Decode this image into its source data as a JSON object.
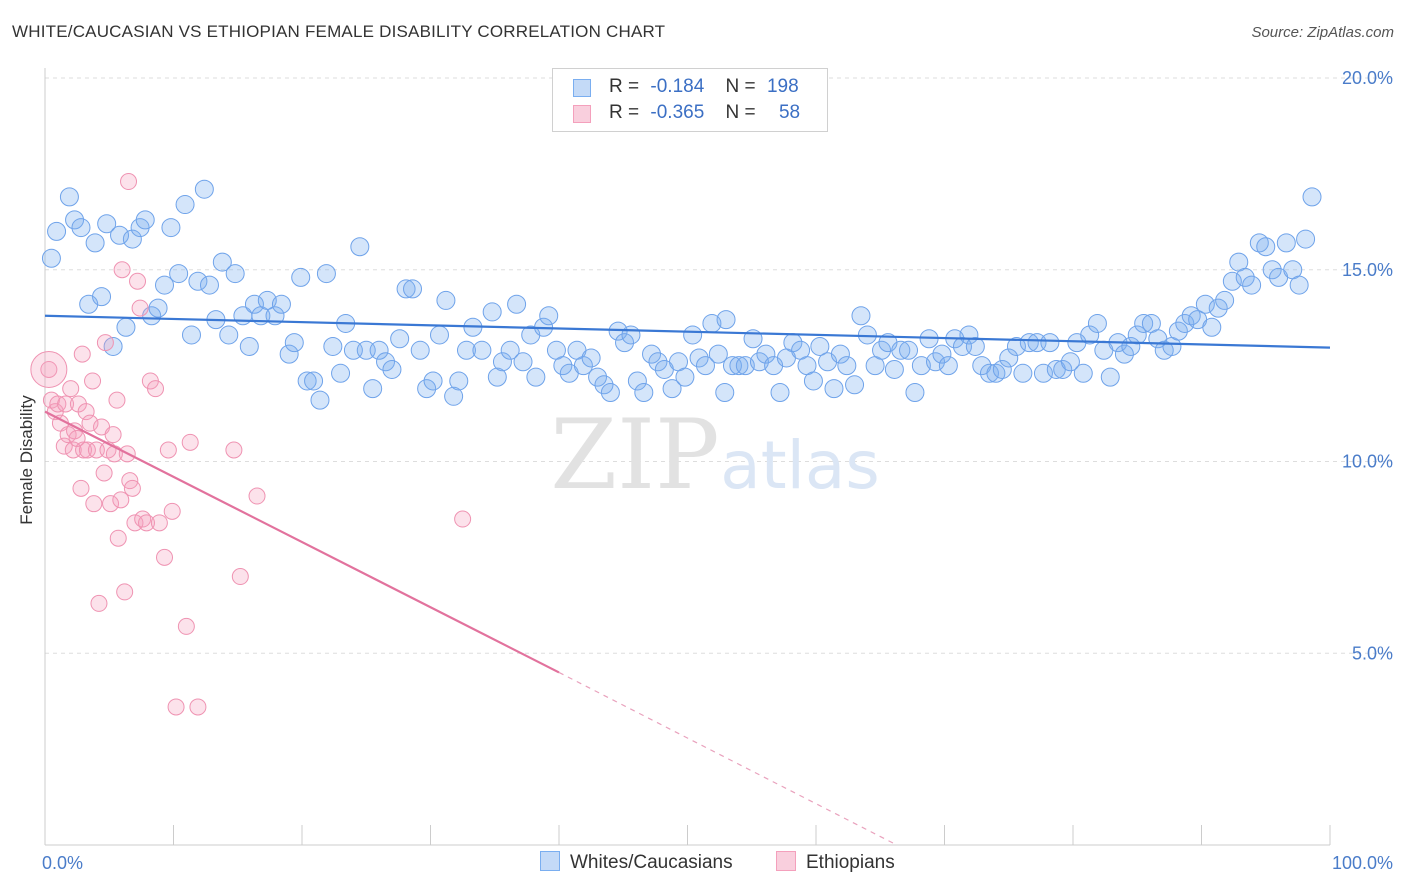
{
  "title": "WHITE/CAUCASIAN VS ETHIOPIAN FEMALE DISABILITY CORRELATION CHART",
  "source": "Source: ZipAtlas.com",
  "watermark": {
    "zip": "ZIP",
    "atlas": "atlas"
  },
  "legend": {
    "rows": [
      {
        "r_label": "R =",
        "r_value": "-0.184",
        "n_label": "N =",
        "n_value": "198",
        "color": "#7aaef0"
      },
      {
        "r_label": "R =",
        "r_value": "-0.365",
        "n_label": "N =",
        "n_value": "58",
        "color": "#f4a0bc"
      }
    ]
  },
  "bottom_legend": [
    {
      "label": "Whites/Caucasians",
      "color": "#7aaef0"
    },
    {
      "label": "Ethiopians",
      "color": "#f4a0bc"
    }
  ],
  "chart_data": {
    "type": "scatter",
    "title": "WHITE/CAUCASIAN VS ETHIOPIAN FEMALE DISABILITY CORRELATION CHART",
    "xlabel": "",
    "ylabel": "Female Disability",
    "xlim": [
      0,
      100
    ],
    "ylim": [
      0,
      20
    ],
    "x_tick_labels": [
      "0.0%",
      "100.0%"
    ],
    "y_ticks": [
      5,
      10,
      15,
      20
    ],
    "y_tick_labels": [
      "5.0%",
      "10.0%",
      "15.0%",
      "20.0%"
    ],
    "grid": true,
    "series": [
      {
        "name": "Whites/Caucasians",
        "color": "#7aaef0",
        "trend": {
          "x": [
            0,
            100
          ],
          "y": [
            13.8,
            12.97
          ]
        },
        "points": [
          [
            0.5,
            15.3
          ],
          [
            0.9,
            16.0
          ],
          [
            1.9,
            16.9
          ],
          [
            2.3,
            16.3
          ],
          [
            2.8,
            16.1
          ],
          [
            3.4,
            14.1
          ],
          [
            3.9,
            15.7
          ],
          [
            4.4,
            14.3
          ],
          [
            4.8,
            16.2
          ],
          [
            5.3,
            13.0
          ],
          [
            5.8,
            15.9
          ],
          [
            6.3,
            13.5
          ],
          [
            6.8,
            15.8
          ],
          [
            7.4,
            16.1
          ],
          [
            7.8,
            16.3
          ],
          [
            8.3,
            13.8
          ],
          [
            8.8,
            14.0
          ],
          [
            9.3,
            14.6
          ],
          [
            9.8,
            16.1
          ],
          [
            10.4,
            14.9
          ],
          [
            10.9,
            16.7
          ],
          [
            11.4,
            13.3
          ],
          [
            11.9,
            14.7
          ],
          [
            12.4,
            17.1
          ],
          [
            12.8,
            14.6
          ],
          [
            13.3,
            13.7
          ],
          [
            13.8,
            15.2
          ],
          [
            14.3,
            13.3
          ],
          [
            14.8,
            14.9
          ],
          [
            15.4,
            13.8
          ],
          [
            15.9,
            13.0
          ],
          [
            16.3,
            14.1
          ],
          [
            16.8,
            13.8
          ],
          [
            17.3,
            14.2
          ],
          [
            17.9,
            13.8
          ],
          [
            18.4,
            14.1
          ],
          [
            19.0,
            12.8
          ],
          [
            19.4,
            13.1
          ],
          [
            19.9,
            14.8
          ],
          [
            20.4,
            12.1
          ],
          [
            20.9,
            12.1
          ],
          [
            21.4,
            11.6
          ],
          [
            21.9,
            14.9
          ],
          [
            22.4,
            13.0
          ],
          [
            23.0,
            12.3
          ],
          [
            23.4,
            13.6
          ],
          [
            24.0,
            12.9
          ],
          [
            24.5,
            15.6
          ],
          [
            25.0,
            12.9
          ],
          [
            25.5,
            11.9
          ],
          [
            26.0,
            12.9
          ],
          [
            26.5,
            12.6
          ],
          [
            27.0,
            12.4
          ],
          [
            27.6,
            13.2
          ],
          [
            28.1,
            14.5
          ],
          [
            28.6,
            14.5
          ],
          [
            29.2,
            12.9
          ],
          [
            29.7,
            11.9
          ],
          [
            30.2,
            12.1
          ],
          [
            30.7,
            13.3
          ],
          [
            31.2,
            14.2
          ],
          [
            31.8,
            11.7
          ],
          [
            32.2,
            12.1
          ],
          [
            32.8,
            12.9
          ],
          [
            33.3,
            13.5
          ],
          [
            34.0,
            12.9
          ],
          [
            34.8,
            13.9
          ],
          [
            35.2,
            12.2
          ],
          [
            35.6,
            12.6
          ],
          [
            36.2,
            12.9
          ],
          [
            36.7,
            14.1
          ],
          [
            37.2,
            12.6
          ],
          [
            37.8,
            13.3
          ],
          [
            38.2,
            12.2
          ],
          [
            38.8,
            13.5
          ],
          [
            39.2,
            13.8
          ],
          [
            39.8,
            12.9
          ],
          [
            40.3,
            12.5
          ],
          [
            40.8,
            12.3
          ],
          [
            41.4,
            12.9
          ],
          [
            41.9,
            12.5
          ],
          [
            42.5,
            12.7
          ],
          [
            43.0,
            12.2
          ],
          [
            43.5,
            12.0
          ],
          [
            44.0,
            11.8
          ],
          [
            44.6,
            13.4
          ],
          [
            45.1,
            13.1
          ],
          [
            45.6,
            13.3
          ],
          [
            46.1,
            12.1
          ],
          [
            46.6,
            11.8
          ],
          [
            47.2,
            12.8
          ],
          [
            47.7,
            12.6
          ],
          [
            48.2,
            12.4
          ],
          [
            48.8,
            11.9
          ],
          [
            49.3,
            12.6
          ],
          [
            49.8,
            12.2
          ],
          [
            50.4,
            13.3
          ],
          [
            50.9,
            12.7
          ],
          [
            51.4,
            12.5
          ],
          [
            51.9,
            13.6
          ],
          [
            52.4,
            12.8
          ],
          [
            52.9,
            11.8
          ],
          [
            53.5,
            12.5
          ],
          [
            54.0,
            12.5
          ],
          [
            54.5,
            12.5
          ],
          [
            55.1,
            13.2
          ],
          [
            55.6,
            12.6
          ],
          [
            56.1,
            12.8
          ],
          [
            56.7,
            12.5
          ],
          [
            57.2,
            11.8
          ],
          [
            57.7,
            12.7
          ],
          [
            58.2,
            13.1
          ],
          [
            58.8,
            12.9
          ],
          [
            59.3,
            12.5
          ],
          [
            59.8,
            12.1
          ],
          [
            60.3,
            13.0
          ],
          [
            60.9,
            12.6
          ],
          [
            61.4,
            11.9
          ],
          [
            61.9,
            12.8
          ],
          [
            62.4,
            12.5
          ],
          [
            63.0,
            12.0
          ],
          [
            63.5,
            13.8
          ],
          [
            64.0,
            13.3
          ],
          [
            64.6,
            12.5
          ],
          [
            65.1,
            12.9
          ],
          [
            65.6,
            13.1
          ],
          [
            66.1,
            12.4
          ],
          [
            66.6,
            12.9
          ],
          [
            67.2,
            12.9
          ],
          [
            67.7,
            11.8
          ],
          [
            68.2,
            12.5
          ],
          [
            68.8,
            13.2
          ],
          [
            69.3,
            12.6
          ],
          [
            69.8,
            12.8
          ],
          [
            70.3,
            12.5
          ],
          [
            70.8,
            13.2
          ],
          [
            71.4,
            13.0
          ],
          [
            71.9,
            13.3
          ],
          [
            72.4,
            13.0
          ],
          [
            72.9,
            12.5
          ],
          [
            73.5,
            12.3
          ],
          [
            74.0,
            12.3
          ],
          [
            74.5,
            12.4
          ],
          [
            75.0,
            12.7
          ],
          [
            75.6,
            13.0
          ],
          [
            76.1,
            12.3
          ],
          [
            76.6,
            13.1
          ],
          [
            77.2,
            13.1
          ],
          [
            77.7,
            12.3
          ],
          [
            78.2,
            13.1
          ],
          [
            78.7,
            12.4
          ],
          [
            79.2,
            12.4
          ],
          [
            79.8,
            12.6
          ],
          [
            80.3,
            13.1
          ],
          [
            80.8,
            12.3
          ],
          [
            81.3,
            13.3
          ],
          [
            81.9,
            13.6
          ],
          [
            82.4,
            12.9
          ],
          [
            82.9,
            12.2
          ],
          [
            83.5,
            13.1
          ],
          [
            84.0,
            12.8
          ],
          [
            84.5,
            13.0
          ],
          [
            85.0,
            13.3
          ],
          [
            85.5,
            13.6
          ],
          [
            86.1,
            13.6
          ],
          [
            86.6,
            13.2
          ],
          [
            87.1,
            12.9
          ],
          [
            87.7,
            13.0
          ],
          [
            88.2,
            13.4
          ],
          [
            88.7,
            13.6
          ],
          [
            89.2,
            13.8
          ],
          [
            89.7,
            13.7
          ],
          [
            90.3,
            14.1
          ],
          [
            90.8,
            13.5
          ],
          [
            91.3,
            14.0
          ],
          [
            91.8,
            14.2
          ],
          [
            92.4,
            14.7
          ],
          [
            92.9,
            15.2
          ],
          [
            93.4,
            14.8
          ],
          [
            93.9,
            14.6
          ],
          [
            94.5,
            15.7
          ],
          [
            95.0,
            15.6
          ],
          [
            95.5,
            15.0
          ],
          [
            96.0,
            14.8
          ],
          [
            96.6,
            15.7
          ],
          [
            97.1,
            15.0
          ],
          [
            97.6,
            14.6
          ],
          [
            98.1,
            15.8
          ],
          [
            98.6,
            16.9
          ],
          [
            53.0,
            13.7
          ]
        ]
      },
      {
        "name": "Ethiopians",
        "color": "#f4a0bc",
        "trend": {
          "x": [
            0,
            40
          ],
          "y": [
            11.3,
            4.5
          ]
        },
        "trend_dashed": {
          "x": [
            40,
            66
          ],
          "y": [
            4.5,
            0.05
          ]
        },
        "points": [
          [
            0.3,
            12.4
          ],
          [
            0.5,
            11.6
          ],
          [
            0.8,
            11.3
          ],
          [
            1.0,
            11.5
          ],
          [
            1.2,
            11.0
          ],
          [
            1.5,
            10.4
          ],
          [
            1.6,
            11.5
          ],
          [
            1.8,
            10.7
          ],
          [
            2.0,
            11.9
          ],
          [
            2.2,
            10.3
          ],
          [
            2.3,
            10.8
          ],
          [
            2.5,
            10.6
          ],
          [
            2.6,
            11.5
          ],
          [
            2.8,
            9.3
          ],
          [
            2.9,
            12.8
          ],
          [
            3.0,
            10.3
          ],
          [
            3.2,
            11.3
          ],
          [
            3.3,
            10.3
          ],
          [
            3.5,
            11.0
          ],
          [
            3.7,
            12.1
          ],
          [
            3.8,
            8.9
          ],
          [
            4.0,
            10.3
          ],
          [
            4.2,
            6.3
          ],
          [
            4.4,
            10.9
          ],
          [
            4.6,
            9.7
          ],
          [
            4.7,
            13.1
          ],
          [
            4.9,
            10.3
          ],
          [
            5.1,
            8.9
          ],
          [
            5.3,
            10.7
          ],
          [
            5.4,
            10.2
          ],
          [
            5.6,
            11.6
          ],
          [
            5.7,
            8.0
          ],
          [
            5.9,
            9.0
          ],
          [
            6.0,
            15.0
          ],
          [
            6.2,
            6.6
          ],
          [
            6.4,
            10.2
          ],
          [
            6.5,
            17.3
          ],
          [
            6.6,
            9.5
          ],
          [
            6.8,
            9.3
          ],
          [
            7.0,
            8.4
          ],
          [
            7.2,
            14.7
          ],
          [
            7.4,
            14.0
          ],
          [
            7.6,
            8.5
          ],
          [
            7.9,
            8.4
          ],
          [
            8.2,
            12.1
          ],
          [
            8.6,
            11.9
          ],
          [
            8.9,
            8.4
          ],
          [
            9.3,
            7.5
          ],
          [
            9.6,
            10.3
          ],
          [
            9.9,
            8.7
          ],
          [
            10.2,
            3.6
          ],
          [
            11.0,
            5.7
          ],
          [
            11.3,
            10.5
          ],
          [
            11.9,
            3.6
          ],
          [
            14.7,
            10.3
          ],
          [
            15.2,
            7.0
          ],
          [
            16.5,
            9.1
          ],
          [
            32.5,
            8.5
          ]
        ]
      }
    ]
  }
}
